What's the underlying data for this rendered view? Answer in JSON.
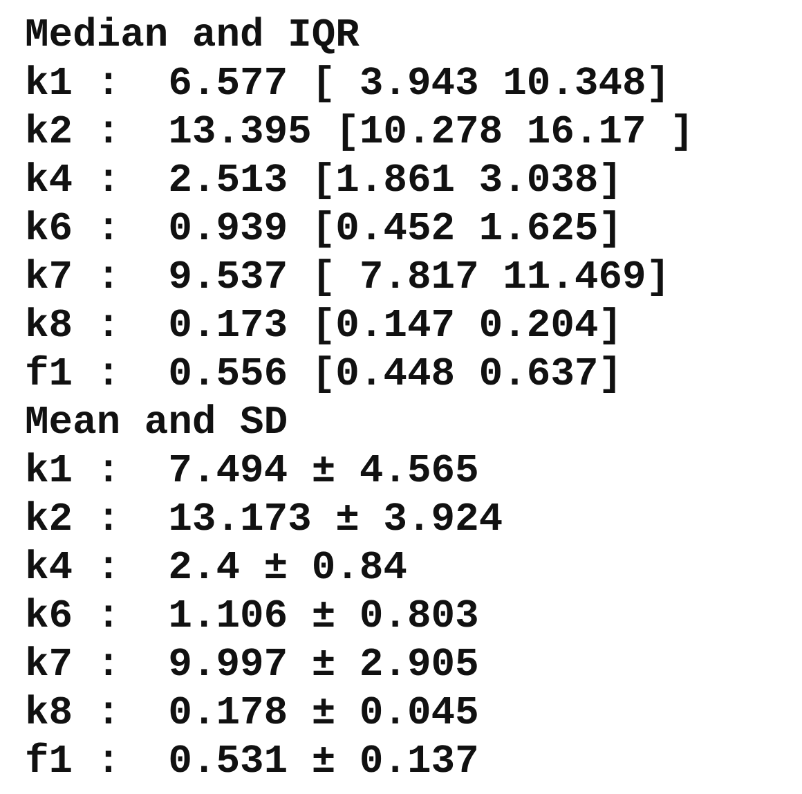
{
  "sections": [
    {
      "title": "Median and IQR",
      "rows": [
        "k1 :  6.577 [ 3.943 10.348]",
        "k2 :  13.395 [10.278 16.17 ]",
        "k4 :  2.513 [1.861 3.038]",
        "k6 :  0.939 [0.452 1.625]",
        "k7 :  9.537 [ 7.817 11.469]",
        "k8 :  0.173 [0.147 0.204]",
        "f1 :  0.556 [0.448 0.637]"
      ]
    },
    {
      "title": "Mean and SD",
      "rows": [
        "k1 :  7.494 ± 4.565",
        "k2 :  13.173 ± 3.924",
        "k4 :  2.4 ± 0.84",
        "k6 :  1.106 ± 0.803",
        "k7 :  9.997 ± 2.905",
        "k8 :  0.178 ± 0.045",
        "f1 :  0.531 ± 0.137"
      ]
    }
  ]
}
